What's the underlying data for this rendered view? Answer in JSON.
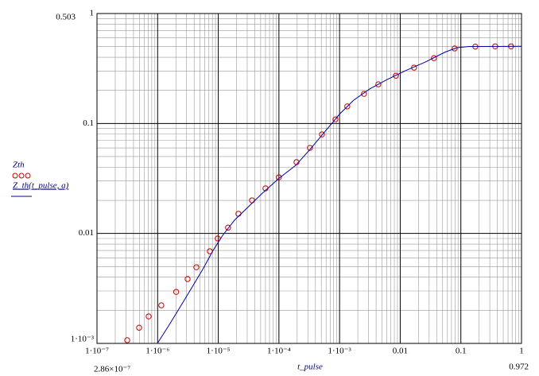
{
  "chart_data": {
    "type": "line",
    "log_x": true,
    "log_y": true,
    "grid": true,
    "minor_grid": true,
    "xlabel": "t_pulse",
    "xlim": [
      1e-07,
      1
    ],
    "ylim": [
      0.001,
      1
    ],
    "xticks": [
      {
        "value": 1e-07,
        "label": "1·10⁻⁷"
      },
      {
        "value": 1e-06,
        "label": "1·10⁻⁶"
      },
      {
        "value": 1e-05,
        "label": "1·10⁻⁵"
      },
      {
        "value": 0.0001,
        "label": "1·10⁻⁴"
      },
      {
        "value": 0.001,
        "label": "1·10⁻³"
      },
      0.01,
      0.1,
      1
    ],
    "yticks": [
      {
        "value": 0.001,
        "label": "1·10⁻³"
      },
      0.01,
      0.1,
      1
    ],
    "markers": {
      "y_top": "0.503",
      "x_left": "2.86×10⁻⁷",
      "x_right": "0.972"
    },
    "series": [
      {
        "name": "Zth",
        "style": "circles",
        "color": "#cc0000",
        "x": [
          3.15e-07,
          4.95e-07,
          7.11e-07,
          1.15e-06,
          2.02e-06,
          3.12e-06,
          4.35e-06,
          7.26e-06,
          9.8e-06,
          1.45e-05,
          2.15e-05,
          3.6e-05,
          6e-05,
          0.0001,
          0.000195,
          0.000325,
          0.000512,
          0.000855,
          0.00134,
          0.00253,
          0.00436,
          0.0085,
          0.0169,
          0.036,
          0.079,
          0.173,
          0.368,
          0.673
        ],
        "values": [
          0.00107,
          0.00139,
          0.00176,
          0.00222,
          0.00294,
          0.00385,
          0.00493,
          0.00689,
          0.009,
          0.0113,
          0.0151,
          0.02,
          0.0257,
          0.0324,
          0.0445,
          0.06,
          0.0796,
          0.109,
          0.143,
          0.186,
          0.227,
          0.272,
          0.322,
          0.393,
          0.481,
          0.5,
          0.503,
          0.503
        ]
      },
      {
        "name": "Z_th(t_pulse, a)",
        "style": "line",
        "color": "#0000a0",
        "x": [
          9.9e-07,
          1.51e-06,
          2.31e-06,
          3.52e-06,
          5.53e-06,
          8.19e-06,
          1.18e-05,
          1.85e-05,
          2.91e-05,
          5.32e-05,
          0.0001,
          0.000189,
          0.000325,
          0.000595,
          0.00102,
          0.00171,
          0.00313,
          0.00608,
          0.0122,
          0.0259,
          0.0551,
          0.0865,
          0.136,
          1
        ],
        "values": [
          0.001,
          0.00144,
          0.00211,
          0.0031,
          0.0047,
          0.007,
          0.0096,
          0.0132,
          0.0168,
          0.0232,
          0.0317,
          0.0416,
          0.058,
          0.0865,
          0.123,
          0.163,
          0.206,
          0.251,
          0.302,
          0.362,
          0.446,
          0.489,
          0.501,
          0.503
        ]
      }
    ]
  }
}
